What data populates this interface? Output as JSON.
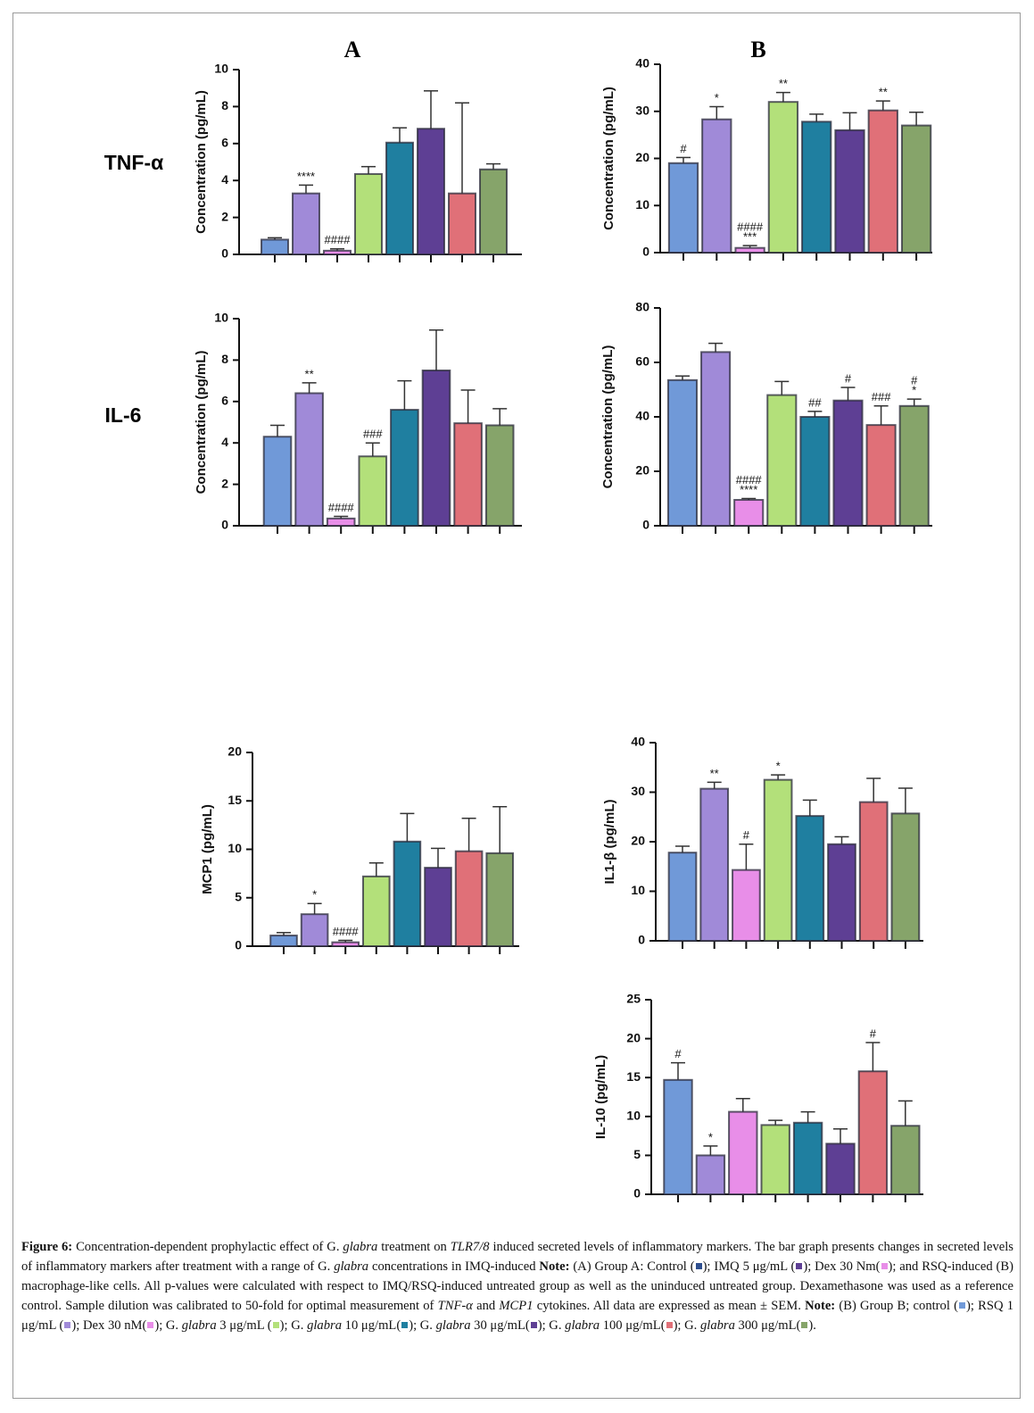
{
  "panel_labels": [
    "A",
    "B"
  ],
  "row_labels": [
    "TNF-α",
    "IL-6"
  ],
  "chart_data": [
    {
      "type": "bar",
      "ylabel": "Concentration (pg/mL)",
      "categories": [
        null,
        null,
        null,
        null,
        null,
        null,
        null,
        null
      ],
      "values": [
        0.8,
        3.3,
        0.2,
        4.35,
        6.05,
        6.8,
        3.3,
        4.6
      ],
      "errors": [
        0.1,
        0.45,
        0.1,
        0.4,
        0.8,
        2.05,
        4.9,
        0.3
      ],
      "annotations": [
        null,
        "****",
        "####",
        null,
        null,
        null,
        null,
        null
      ],
      "colors": [
        "#7099d8",
        "#a08ad8",
        "#e88ee8",
        "#b3e07a",
        "#1f7fa0",
        "#5e3f94",
        "#e07078",
        "#86a46a"
      ],
      "ylim": [
        0,
        10
      ],
      "yticks": [
        0,
        2,
        4,
        6,
        8,
        10
      ]
    },
    {
      "type": "bar",
      "ylabel": "Concentration (pg/mL)",
      "categories": [
        null,
        null,
        null,
        null,
        null,
        null,
        null,
        null
      ],
      "values": [
        19,
        28.3,
        1,
        32,
        27.8,
        26,
        30.2,
        27
      ],
      "errors": [
        1.2,
        2.7,
        0.5,
        2,
        1.6,
        3.7,
        2,
        2.8
      ],
      "annotations": [
        "#",
        "*",
        [
          "####",
          "***"
        ],
        "**",
        null,
        null,
        "**",
        null
      ],
      "colors": [
        "#7099d8",
        "#a08ad8",
        "#e88ee8",
        "#b3e07a",
        "#1f7fa0",
        "#5e3f94",
        "#e07078",
        "#86a46a"
      ],
      "ylim": [
        0,
        40
      ],
      "yticks": [
        0,
        10,
        20,
        30,
        40
      ]
    },
    {
      "type": "bar",
      "ylabel": "Concentration (pg/mL)",
      "categories": [
        null,
        null,
        null,
        null,
        null,
        null,
        null,
        null
      ],
      "values": [
        4.3,
        6.4,
        0.35,
        3.35,
        5.6,
        7.5,
        4.95,
        4.85
      ],
      "errors": [
        0.55,
        0.5,
        0.1,
        0.65,
        1.4,
        1.95,
        1.6,
        0.8
      ],
      "annotations": [
        null,
        "**",
        "####",
        "###",
        null,
        null,
        null,
        null
      ],
      "colors": [
        "#7099d8",
        "#a08ad8",
        "#e88ee8",
        "#b3e07a",
        "#1f7fa0",
        "#5e3f94",
        "#e07078",
        "#86a46a"
      ],
      "ylim": [
        0,
        10
      ],
      "yticks": [
        0,
        2,
        4,
        6,
        8,
        10
      ]
    },
    {
      "type": "bar",
      "ylabel": "Concentration (pg/mL)",
      "categories": [
        null,
        null,
        null,
        null,
        null,
        null,
        null,
        null
      ],
      "values": [
        53.5,
        63.8,
        9.5,
        48,
        40,
        46,
        37,
        44
      ],
      "errors": [
        1.5,
        3.2,
        0.5,
        5,
        2,
        4.8,
        7,
        2.5
      ],
      "annotations": [
        null,
        null,
        [
          "####",
          "****"
        ],
        null,
        "##",
        "#",
        "###",
        [
          "#",
          "*"
        ]
      ],
      "colors": [
        "#7099d8",
        "#a08ad8",
        "#e88ee8",
        "#b3e07a",
        "#1f7fa0",
        "#5e3f94",
        "#e07078",
        "#86a46a"
      ],
      "ylim": [
        0,
        80
      ],
      "yticks": [
        0,
        20,
        40,
        60,
        80
      ]
    },
    {
      "type": "bar",
      "ylabel": "MCP1 (pg/mL)",
      "categories": [
        null,
        null,
        null,
        null,
        null,
        null,
        null,
        null
      ],
      "values": [
        1.1,
        3.3,
        0.4,
        7.2,
        10.8,
        8.1,
        9.8,
        9.6
      ],
      "errors": [
        0.3,
        1.1,
        0.2,
        1.4,
        2.9,
        2,
        3.4,
        4.8
      ],
      "annotations": [
        null,
        "*",
        "####",
        null,
        null,
        null,
        null,
        null
      ],
      "colors": [
        "#7099d8",
        "#a08ad8",
        "#e88ee8",
        "#b3e07a",
        "#1f7fa0",
        "#5e3f94",
        "#e07078",
        "#86a46a"
      ],
      "ylim": [
        0,
        20
      ],
      "yticks": [
        0,
        5,
        10,
        15,
        20
      ]
    },
    {
      "type": "bar",
      "ylabel": "IL1-β (pg/mL)",
      "categories": [
        null,
        null,
        null,
        null,
        null,
        null,
        null,
        null
      ],
      "values": [
        17.8,
        30.7,
        14.3,
        32.5,
        25.2,
        19.5,
        28,
        25.7
      ],
      "errors": [
        1.3,
        1.3,
        5.2,
        1,
        3.2,
        1.5,
        4.8,
        5.1
      ],
      "annotations": [
        null,
        "**",
        "#",
        "*",
        null,
        null,
        null,
        null
      ],
      "colors": [
        "#7099d8",
        "#a08ad8",
        "#e88ee8",
        "#b3e07a",
        "#1f7fa0",
        "#5e3f94",
        "#e07078",
        "#86a46a"
      ],
      "ylim": [
        0,
        40
      ],
      "yticks": [
        0,
        10,
        20,
        30,
        40
      ]
    },
    {
      "type": "bar",
      "ylabel": "IL-10 (pg/mL)",
      "categories": [
        null,
        null,
        null,
        null,
        null,
        null,
        null,
        null
      ],
      "values": [
        14.7,
        5,
        10.6,
        8.9,
        9.2,
        6.5,
        15.8,
        8.8
      ],
      "errors": [
        2.2,
        1.2,
        1.7,
        0.6,
        1.4,
        1.9,
        3.7,
        3.2
      ],
      "annotations": [
        "#",
        "*",
        null,
        null,
        null,
        null,
        "#",
        null
      ],
      "colors": [
        "#7099d8",
        "#a08ad8",
        "#e88ee8",
        "#b3e07a",
        "#1f7fa0",
        "#5e3f94",
        "#e07078",
        "#86a46a"
      ],
      "ylim": [
        0,
        25
      ],
      "yticks": [
        0,
        5,
        10,
        15,
        20,
        25
      ]
    }
  ],
  "caption": [
    {
      "text": "Figure 6:",
      "style": "bold"
    },
    {
      "text": " Concentration-dependent prophylactic effect of G. "
    },
    {
      "text": "glabra",
      "style": "italic"
    },
    {
      "text": " treatment on "
    },
    {
      "text": "TLR7/8",
      "style": "italic"
    },
    {
      "text": " induced secreted levels of inflammatory markers. The bar graph presents changes in secreted levels of inflammatory markers after treatment with a range of G. "
    },
    {
      "text": "glabra",
      "style": "italic"
    },
    {
      "text": " concentrations in IMQ-induced "
    },
    {
      "text": "Note:",
      "style": "bold"
    },
    {
      "text": " (A) Group A: Control ("
    },
    {
      "color": "#2f4f8f"
    },
    {
      "text": "); IMQ 5 μg/mL ("
    },
    {
      "color": "#5e3f94"
    },
    {
      "text": "); Dex 30 Nm("
    },
    {
      "color": "#e88ee8"
    },
    {
      "text": "); and RSQ-induced (B) macrophage-like cells. All p-values were calculated with respect to IMQ/RSQ-induced untreated group as well as the uninduced untreated group. Dexamethasone was used as a reference control. Sample dilution was calibrated to 50-fold for optimal measurement of "
    },
    {
      "text": "TNF-α",
      "style": "italic"
    },
    {
      "text": " and "
    },
    {
      "text": "MCP1",
      "style": "italic"
    },
    {
      "text": " cytokines. All data are expressed as mean ± SEM. "
    },
    {
      "text": "Note:",
      "style": "bold"
    },
    {
      "text": " (B) Group B; control ("
    },
    {
      "color": "#7099d8"
    },
    {
      "text": "); RSQ 1 μg/mL ("
    },
    {
      "color": "#a08ad8"
    },
    {
      "text": "); Dex 30 nM("
    },
    {
      "color": "#e88ee8"
    },
    {
      "text": "); G. "
    },
    {
      "text": "glabra",
      "style": "italic"
    },
    {
      "text": " 3 μg/mL ("
    },
    {
      "color": "#b3e07a"
    },
    {
      "text": "); G. "
    },
    {
      "text": "glabra",
      "style": "italic"
    },
    {
      "text": " 10 μg/mL("
    },
    {
      "color": "#1f7fa0"
    },
    {
      "text": "); G. "
    },
    {
      "text": "glabra",
      "style": "italic"
    },
    {
      "text": " 30 μg/mL("
    },
    {
      "color": "#5e3f94"
    },
    {
      "text": "); G. "
    },
    {
      "text": "glabra",
      "style": "italic"
    },
    {
      "text": " 100 μg/mL("
    },
    {
      "color": "#e07078"
    },
    {
      "text": "); G. "
    },
    {
      "text": "glabra",
      "style": "italic"
    },
    {
      "text": " 300 μg/mL("
    },
    {
      "color": "#86a46a"
    },
    {
      "text": ")."
    }
  ]
}
